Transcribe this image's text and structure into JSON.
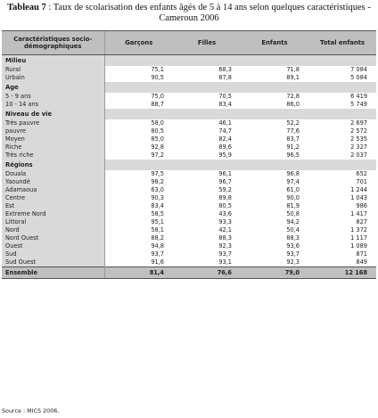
{
  "caption": {
    "label": "Tableau 7",
    "text": " : Taux  de scolarisation des enfants âgés de 5 à 14 ans selon quelques caractéristiques - Cameroun 2006"
  },
  "columns": [
    "Caractéristiques socio-démographiques",
    "Garçons",
    "Filles",
    "Enfants",
    "Total enfants"
  ],
  "sections": [
    {
      "title": "Milieu",
      "rows": [
        {
          "label": "Rural",
          "garcons": "75,1",
          "filles": "68,3",
          "enfants": "71,8",
          "total": "7 084"
        },
        {
          "label": "Urbain",
          "garcons": "90,5",
          "filles": "87,8",
          "enfants": "89,1",
          "total": "5 084"
        }
      ]
    },
    {
      "title": "Age",
      "rows": [
        {
          "label": "5 - 9 ans",
          "garcons": "75,0",
          "filles": "70,5",
          "enfants": "72,8",
          "total": "6 419"
        },
        {
          "label": "10 - 14 ans",
          "garcons": "88,7",
          "filles": "83,4",
          "enfants": "86,0",
          "total": "5 749"
        }
      ]
    },
    {
      "title": "Niveau de vie",
      "rows": [
        {
          "label": "Très pauvre",
          "garcons": "58,0",
          "filles": "46,1",
          "enfants": "52,2",
          "total": "2 697"
        },
        {
          "label": "pauvre",
          "garcons": "80,5",
          "filles": "74,7",
          "enfants": "77,6",
          "total": "2 572"
        },
        {
          "label": "Moyen",
          "garcons": "85,0",
          "filles": "82,4",
          "enfants": "83,7",
          "total": "2 535"
        },
        {
          "label": "Riche",
          "garcons": "92,8",
          "filles": "89,6",
          "enfants": "91,2",
          "total": "2 327"
        },
        {
          "label": "Très riche",
          "garcons": "97,2",
          "filles": "95,9",
          "enfants": "96,5",
          "total": "2 037"
        }
      ]
    },
    {
      "title": "Régions",
      "rows": [
        {
          "label": "Douala",
          "garcons": "97,5",
          "filles": "96,1",
          "enfants": "96,8",
          "total": "652"
        },
        {
          "label": "Yaoundé",
          "garcons": "98,2",
          "filles": "96,7",
          "enfants": "97,4",
          "total": "701"
        },
        {
          "label": "Adamaoua",
          "garcons": "63,0",
          "filles": "59,2",
          "enfants": "61,0",
          "total": "1 244"
        },
        {
          "label": "Centre",
          "garcons": "90,3",
          "filles": "89,8",
          "enfants": "90,0",
          "total": "1 043"
        },
        {
          "label": "Est",
          "garcons": "83,4",
          "filles": "80,5",
          "enfants": "81,9",
          "total": "986"
        },
        {
          "label": "Extreme Nord",
          "garcons": "58,5",
          "filles": "43,6",
          "enfants": "50,8",
          "total": "1 417"
        },
        {
          "label": "Littoral",
          "garcons": "95,1",
          "filles": "93,3",
          "enfants": "94,2",
          "total": "827"
        },
        {
          "label": "Nord",
          "garcons": "58,1",
          "filles": "42,1",
          "enfants": "50,4",
          "total": "1 372"
        },
        {
          "label": "Nord Ouest",
          "garcons": "88,2",
          "filles": "88,3",
          "enfants": "88,3",
          "total": "1 117"
        },
        {
          "label": "Ouest",
          "garcons": "94,8",
          "filles": "92,3",
          "enfants": "93,6",
          "total": "1 089"
        },
        {
          "label": "Sud",
          "garcons": "93,7",
          "filles": "93,7",
          "enfants": "93,7",
          "total": "871"
        },
        {
          "label": "Sud Ouest",
          "garcons": "91,6",
          "filles": "93,1",
          "enfants": "92,3",
          "total": "849"
        }
      ]
    }
  ],
  "total_row": {
    "label": "Ensemble",
    "garcons": "81,4",
    "filles": "76,6",
    "enfants": "79,0",
    "total": "12 168"
  },
  "source": "Source :  MICS 2006."
}
